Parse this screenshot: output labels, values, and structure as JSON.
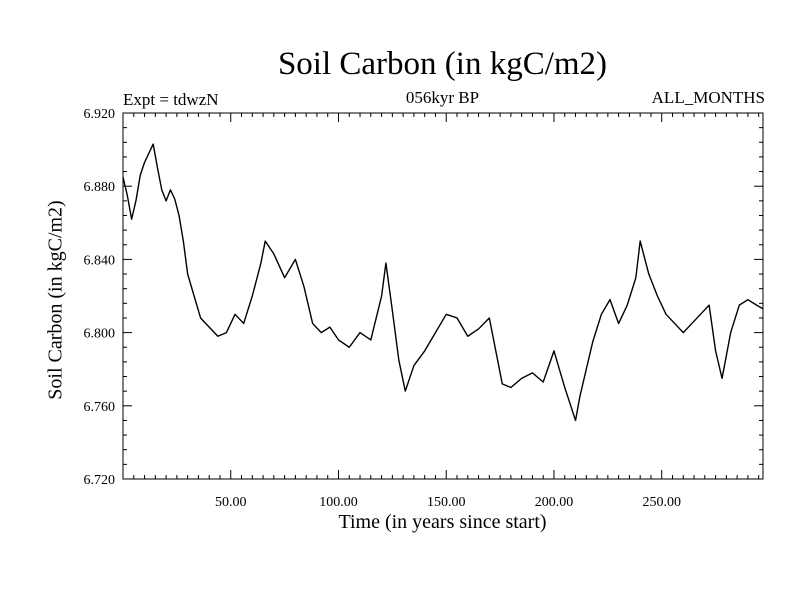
{
  "chart_data": {
    "type": "line",
    "title": "Soil Carbon (in kgC/m2)",
    "subtitle_left": "Expt = tdwzN",
    "subtitle_center": "056kyr BP",
    "subtitle_right": "ALL_MONTHS",
    "xlabel": "Time (in years since start)",
    "ylabel": "Soil Carbon (in kgC/m2)",
    "xlim": [
      0,
      297
    ],
    "ylim": [
      6.72,
      6.92
    ],
    "xticks": [
      50,
      100,
      150,
      200,
      250
    ],
    "xtick_labels": [
      "50.00",
      "100.00",
      "150.00",
      "200.00",
      "250.00"
    ],
    "yticks": [
      6.72,
      6.76,
      6.8,
      6.84,
      6.88,
      6.92
    ],
    "ytick_labels": [
      "6.720",
      "6.760",
      "6.800",
      "6.840",
      "6.880",
      "6.920"
    ],
    "grid": false,
    "line_color": "#000000",
    "series": [
      {
        "x": [
          0,
          2,
          4,
          6,
          8,
          10,
          12,
          14,
          16,
          18,
          20,
          22,
          24,
          26,
          28,
          30,
          33,
          36,
          40,
          44,
          48,
          52,
          56,
          60,
          64,
          66,
          70,
          75,
          80,
          84,
          88,
          92,
          96,
          100,
          105,
          110,
          115,
          120,
          122,
          125,
          128,
          131,
          135,
          140,
          145,
          150,
          155,
          160,
          165,
          170,
          173,
          176,
          180,
          185,
          190,
          195,
          200,
          205,
          210,
          212,
          215,
          218,
          222,
          226,
          230,
          234,
          238,
          240,
          244,
          248,
          252,
          256,
          260,
          264,
          268,
          272,
          275,
          278,
          282,
          286,
          290,
          294,
          297
        ],
        "y": [
          6.885,
          6.875,
          6.862,
          6.872,
          6.886,
          6.893,
          6.898,
          6.903,
          6.89,
          6.878,
          6.872,
          6.878,
          6.873,
          6.864,
          6.85,
          6.832,
          6.82,
          6.808,
          6.803,
          6.798,
          6.8,
          6.81,
          6.805,
          6.82,
          6.838,
          6.85,
          6.843,
          6.83,
          6.84,
          6.825,
          6.805,
          6.8,
          6.803,
          6.796,
          6.792,
          6.8,
          6.796,
          6.82,
          6.838,
          6.812,
          6.785,
          6.768,
          6.782,
          6.79,
          6.8,
          6.81,
          6.808,
          6.798,
          6.802,
          6.808,
          6.79,
          6.772,
          6.77,
          6.775,
          6.778,
          6.773,
          6.79,
          6.77,
          6.752,
          6.765,
          6.78,
          6.795,
          6.81,
          6.818,
          6.805,
          6.815,
          6.83,
          6.85,
          6.832,
          6.82,
          6.81,
          6.805,
          6.8,
          6.805,
          6.81,
          6.815,
          6.79,
          6.775,
          6.8,
          6.815,
          6.818,
          6.815,
          6.813
        ]
      }
    ]
  }
}
